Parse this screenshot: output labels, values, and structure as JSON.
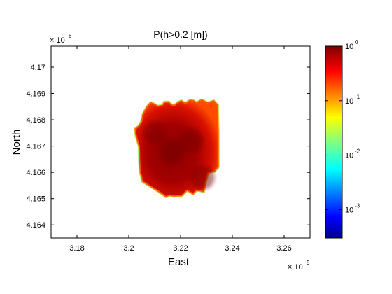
{
  "chart_data": {
    "type": "heatmap",
    "title": "P(h>0.2 [m])",
    "xlabel": "East",
    "ylabel": "North",
    "x_multiplier": {
      "base": "× 10",
      "exponent": "5"
    },
    "y_multiplier": {
      "base": "× 10",
      "exponent": "6"
    },
    "xlim": [
      3.17,
      3.27
    ],
    "ylim": [
      4.1635,
      4.1708
    ],
    "x_ticks": [
      3.18,
      3.2,
      3.22,
      3.24,
      3.26
    ],
    "x_tick_labels": [
      "3.18",
      "3.2",
      "3.22",
      "3.24",
      "3.26"
    ],
    "y_ticks": [
      4.164,
      4.165,
      4.166,
      4.167,
      4.168,
      4.169,
      4.17
    ],
    "y_tick_labels": [
      "4.164",
      "4.165",
      "4.166",
      "4.167",
      "4.168",
      "4.169",
      "4.17"
    ],
    "colorbar": {
      "scale": "log",
      "colormap": "jet",
      "range": [
        0.0003,
        1
      ],
      "ticks": [
        {
          "value": 1,
          "base": "10",
          "exp": "0"
        },
        {
          "value": 0.1,
          "base": "10",
          "exp": "-1"
        },
        {
          "value": 0.01,
          "base": "10",
          "exp": "-2"
        },
        {
          "value": 0.001,
          "base": "10",
          "exp": "-3"
        }
      ]
    },
    "region": {
      "description_values": "probability near 1 inside the flooded area, falling off at the edges",
      "east_extent": [
        3.2024,
        3.2345
      ],
      "north_extent": [
        4.1651,
        4.1687
      ],
      "core_value": 0.9,
      "edge_value": 0.1,
      "outline": [
        [
          3.2075,
          4.16855
        ],
        [
          3.2085,
          4.16865
        ],
        [
          3.2098,
          4.1686
        ],
        [
          3.2112,
          4.16852
        ],
        [
          3.2128,
          4.16854
        ],
        [
          3.2138,
          4.16867
        ],
        [
          3.2153,
          4.16868
        ],
        [
          3.2166,
          4.16856
        ],
        [
          3.2177,
          4.16855
        ],
        [
          3.2188,
          4.16865
        ],
        [
          3.2203,
          4.16872
        ],
        [
          3.2218,
          4.16862
        ],
        [
          3.2236,
          4.16874
        ],
        [
          3.2249,
          4.16873
        ],
        [
          3.2262,
          4.16865
        ],
        [
          3.2282,
          4.16876
        ],
        [
          3.2304,
          4.16864
        ],
        [
          3.2328,
          4.16872
        ],
        [
          3.2343,
          4.16856
        ],
        [
          3.2345,
          4.1674
        ],
        [
          3.2345,
          4.1662
        ],
        [
          3.233,
          4.16603
        ],
        [
          3.2307,
          4.166
        ],
        [
          3.2296,
          4.1656
        ],
        [
          3.2289,
          4.16527
        ],
        [
          3.2275,
          4.1653
        ],
        [
          3.2262,
          4.16532
        ],
        [
          3.2248,
          4.16518
        ],
        [
          3.2225,
          4.16532
        ],
        [
          3.2205,
          4.16512
        ],
        [
          3.2175,
          4.1651
        ],
        [
          3.2157,
          4.16513
        ],
        [
          3.2144,
          4.16507
        ],
        [
          3.2116,
          4.16527
        ],
        [
          3.2084,
          4.16547
        ],
        [
          3.2054,
          4.16565
        ],
        [
          3.2045,
          4.166
        ],
        [
          3.2042,
          4.1664
        ],
        [
          3.2041,
          4.1668
        ],
        [
          3.204,
          4.167
        ],
        [
          3.2034,
          4.1672
        ],
        [
          3.2027,
          4.16745
        ],
        [
          3.2025,
          4.16765
        ],
        [
          3.204,
          4.16777
        ],
        [
          3.205,
          4.16795
        ],
        [
          3.2055,
          4.1682
        ],
        [
          3.2065,
          4.1684
        ]
      ],
      "hotspots": [
        {
          "east": 3.2165,
          "north": 4.1668,
          "value": 1.0
        },
        {
          "east": 3.224,
          "north": 4.1672,
          "value": 0.95
        },
        {
          "east": 3.2285,
          "north": 4.1658,
          "value": 0.9
        },
        {
          "east": 3.21,
          "north": 4.1675,
          "value": 0.85
        }
      ]
    }
  }
}
